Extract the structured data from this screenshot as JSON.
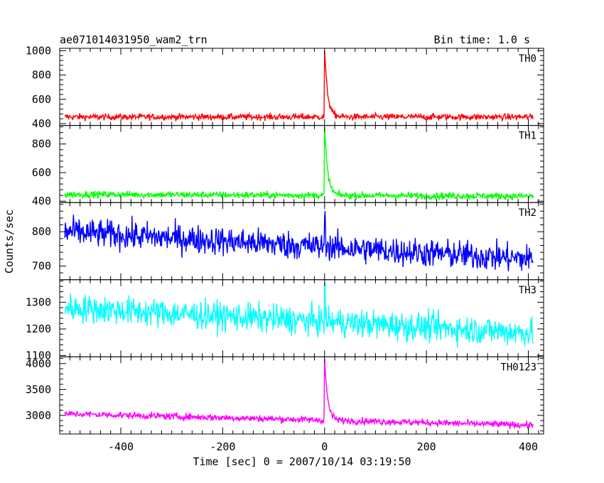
{
  "chart_data": {
    "type": "line",
    "title": "ae071014031950_wam2_trn",
    "subtitle": "Bin time: 1.0 s",
    "xlabel": "Time [sec] 0 = 2007/10/14 03:19:50",
    "ylabel": "Counts/sec",
    "xlim": [
      -520,
      430
    ],
    "xticks": [
      -400,
      -200,
      0,
      200,
      400
    ],
    "x_start": -510,
    "x_end": 410,
    "burst_time": 0,
    "panels": [
      {
        "name": "TH0",
        "color": "#ff0000",
        "ylim": [
          385,
          1020
        ],
        "yticks": [
          400,
          600,
          800,
          1000
        ],
        "baseline_start": 455,
        "baseline_end": 455,
        "noise": 22,
        "peak": 1010,
        "decay": 6
      },
      {
        "name": "TH1",
        "color": "#00ff00",
        "ylim": [
          390,
          930
        ],
        "yticks": [
          400,
          600,
          800
        ],
        "baseline_start": 448,
        "baseline_end": 435,
        "noise": 20,
        "peak": 925,
        "decay": 6
      },
      {
        "name": "TH2",
        "color": "#0000ff",
        "ylim": [
          660,
          885
        ],
        "yticks": [
          700,
          800
        ],
        "baseline_start": 800,
        "baseline_end": 720,
        "noise": 35,
        "peak": 860,
        "decay": 2
      },
      {
        "name": "TH3",
        "color": "#00ffff",
        "ylim": [
          1095,
          1385
        ],
        "yticks": [
          1100,
          1200,
          1300
        ],
        "baseline_start": 1280,
        "baseline_end": 1185,
        "noise": 45,
        "peak": 1340,
        "decay": 2
      },
      {
        "name": "TH0123",
        "color": "#ff00ff",
        "ylim": [
          2640,
          4130
        ],
        "yticks": [
          3000,
          3500,
          4000
        ],
        "baseline_start": 3030,
        "baseline_end": 2810,
        "noise": 55,
        "peak": 4100,
        "decay": 6
      }
    ]
  }
}
